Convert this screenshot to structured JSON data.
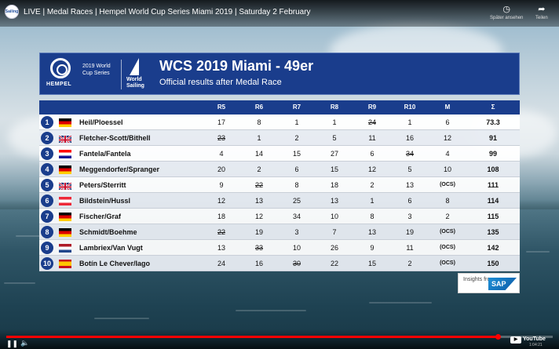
{
  "video": {
    "title": "LIVE | Medal Races | Hempel World Cup Series Miami 2019 | Saturday 2 February",
    "channel_avatar": "Sailing",
    "watch_later_label": "Später ansehen",
    "share_label": "Teilen",
    "icons": {
      "watch_later": "clock-icon",
      "share": "share-arrow-icon",
      "play": "play-pause-icon",
      "volume": "volume-icon",
      "settings": "gear-icon"
    },
    "progress_fraction": 0.9,
    "time": "1:04:21",
    "youtube_label": "YouTube"
  },
  "results": {
    "logo_hempel": "HEMPEL",
    "logo_series": "2019 World Cup Series",
    "logo_world_sailing": "World Sailing",
    "title": "WCS 2019 Miami - 49er",
    "subtitle": "Official results after Medal Race",
    "columns": [
      "R5",
      "R6",
      "R7",
      "R8",
      "R9",
      "R10",
      "M",
      "Σ"
    ],
    "rows": [
      {
        "rank": "1",
        "flag": "ger",
        "name": "Heil/Ploessel",
        "cells": [
          "17",
          "8",
          "1",
          "1",
          "24",
          "1",
          "6",
          "73.3"
        ],
        "discard": [
          false,
          false,
          false,
          false,
          true,
          false,
          false,
          false
        ]
      },
      {
        "rank": "2",
        "flag": "gbr",
        "name": "Fletcher-Scott/Bithell",
        "cells": [
          "23",
          "1",
          "2",
          "5",
          "11",
          "16",
          "12",
          "91"
        ],
        "discard": [
          true,
          false,
          false,
          false,
          false,
          false,
          false,
          false
        ]
      },
      {
        "rank": "3",
        "flag": "cro",
        "name": "Fantela/Fantela",
        "cells": [
          "4",
          "14",
          "15",
          "27",
          "6",
          "34",
          "4",
          "99"
        ],
        "discard": [
          false,
          false,
          false,
          false,
          false,
          true,
          false,
          false
        ]
      },
      {
        "rank": "4",
        "flag": "ger",
        "name": "Meggendorfer/Spranger",
        "cells": [
          "20",
          "2",
          "6",
          "15",
          "12",
          "5",
          "10",
          "108"
        ],
        "discard": [
          false,
          false,
          false,
          false,
          false,
          false,
          false,
          false
        ]
      },
      {
        "rank": "5",
        "flag": "gbr",
        "name": "Peters/Sterritt",
        "cells": [
          "9",
          "22",
          "8",
          "18",
          "2",
          "13",
          "(OCS)",
          "111"
        ],
        "discard": [
          false,
          true,
          false,
          false,
          false,
          false,
          false,
          false
        ]
      },
      {
        "rank": "6",
        "flag": "aut",
        "name": "Bildstein/Hussl",
        "cells": [
          "12",
          "13",
          "25",
          "13",
          "1",
          "6",
          "8",
          "114"
        ],
        "discard": [
          false,
          false,
          false,
          false,
          false,
          false,
          false,
          false
        ]
      },
      {
        "rank": "7",
        "flag": "ger",
        "name": "Fischer/Graf",
        "cells": [
          "18",
          "12",
          "34",
          "10",
          "8",
          "3",
          "2",
          "115"
        ],
        "discard": [
          false,
          false,
          false,
          false,
          false,
          false,
          false,
          false
        ]
      },
      {
        "rank": "8",
        "flag": "ger",
        "name": "Schmidt/Boehme",
        "cells": [
          "22",
          "19",
          "3",
          "7",
          "13",
          "19",
          "(OCS)",
          "135"
        ],
        "discard": [
          true,
          false,
          false,
          false,
          false,
          false,
          false,
          false
        ]
      },
      {
        "rank": "9",
        "flag": "ned",
        "name": "Lambriex/Van Vugt",
        "cells": [
          "13",
          "33",
          "10",
          "26",
          "9",
          "11",
          "(OCS)",
          "142"
        ],
        "discard": [
          false,
          true,
          false,
          false,
          false,
          false,
          false,
          false
        ]
      },
      {
        "rank": "10",
        "flag": "esp",
        "name": "Botín Le Chever/Iago",
        "cells": [
          "24",
          "16",
          "30",
          "22",
          "15",
          "2",
          "(OCS)",
          "150"
        ],
        "discard": [
          false,
          false,
          true,
          false,
          false,
          false,
          false,
          false
        ]
      }
    ],
    "sponsor_text": "Insights from",
    "sponsor_logo": "SAP"
  }
}
